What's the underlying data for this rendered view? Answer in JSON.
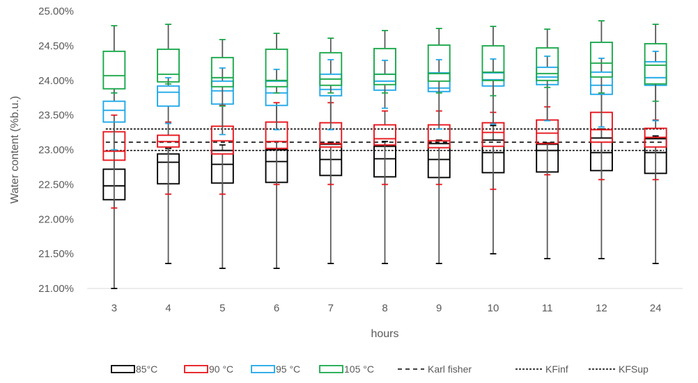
{
  "chart_data": {
    "type": "boxplot",
    "categories": [
      "3",
      "4",
      "5",
      "6",
      "7",
      "8",
      "9",
      "10",
      "11",
      "12",
      "24"
    ],
    "xlabel": "hours",
    "ylabel": "Water content (%b.u.)",
    "ylim": [
      21.0,
      25.0
    ],
    "yticks": [
      21.0,
      21.5,
      22.0,
      22.5,
      23.0,
      23.5,
      24.0,
      24.5,
      25.0
    ],
    "ytick_labels": [
      "21.00%",
      "21.50%",
      "22.00%",
      "22.50%",
      "23.00%",
      "23.50%",
      "24.00%",
      "24.50%",
      "25.00%"
    ],
    "grid": false,
    "legend_position": "bottom",
    "series": [
      {
        "name": "85°C",
        "color": "#000000",
        "boxes": [
          {
            "min": 21.0,
            "q1": 22.28,
            "median": 22.48,
            "q3": 22.72,
            "max": 22.98
          },
          {
            "min": 21.36,
            "q1": 22.51,
            "median": 22.82,
            "q3": 22.94,
            "max": 23.02
          },
          {
            "min": 21.29,
            "q1": 22.52,
            "median": 22.79,
            "q3": 22.99,
            "max": 23.07
          },
          {
            "min": 21.29,
            "q1": 22.53,
            "median": 22.83,
            "q3": 23.0,
            "max": 23.12
          },
          {
            "min": 21.36,
            "q1": 22.63,
            "median": 22.86,
            "q3": 23.08,
            "max": 23.11
          },
          {
            "min": 21.36,
            "q1": 22.61,
            "median": 22.87,
            "q3": 23.05,
            "max": 23.12
          },
          {
            "min": 21.36,
            "q1": 22.6,
            "median": 22.86,
            "q3": 23.09,
            "max": 23.14
          },
          {
            "min": 21.5,
            "q1": 22.67,
            "median": 22.96,
            "q3": 23.14,
            "max": 23.35
          },
          {
            "min": 21.43,
            "q1": 22.68,
            "median": 22.99,
            "q3": 23.08,
            "max": 23.1
          },
          {
            "min": 21.43,
            "q1": 22.7,
            "median": 22.96,
            "q3": 23.17,
            "max": 23.3
          },
          {
            "min": 21.36,
            "q1": 22.66,
            "median": 22.96,
            "q3": 23.16,
            "max": 23.2
          }
        ]
      },
      {
        "name": "90 °C",
        "color": "#e8141a",
        "boxes": [
          {
            "min": 22.16,
            "q1": 22.85,
            "median": 22.98,
            "q3": 23.26,
            "max": 23.5
          },
          {
            "min": 22.36,
            "q1": 23.04,
            "median": 23.12,
            "q3": 23.21,
            "max": 23.4
          },
          {
            "min": 22.36,
            "q1": 22.94,
            "median": 23.13,
            "q3": 23.34,
            "max": 23.64
          },
          {
            "min": 22.5,
            "q1": 23.02,
            "median": 23.12,
            "q3": 23.4,
            "max": 23.68
          },
          {
            "min": 22.5,
            "q1": 23.04,
            "median": 23.09,
            "q3": 23.39,
            "max": 23.68
          },
          {
            "min": 22.5,
            "q1": 23.07,
            "median": 23.16,
            "q3": 23.36,
            "max": 23.56
          },
          {
            "min": 22.5,
            "q1": 23.03,
            "median": 23.13,
            "q3": 23.36,
            "max": 23.56
          },
          {
            "min": 22.43,
            "q1": 23.05,
            "median": 23.25,
            "q3": 23.39,
            "max": 23.54
          },
          {
            "min": 22.64,
            "q1": 23.09,
            "median": 23.24,
            "q3": 23.43,
            "max": 23.62
          },
          {
            "min": 22.57,
            "q1": 23.11,
            "median": 23.29,
            "q3": 23.54,
            "max": 23.8
          },
          {
            "min": 22.57,
            "q1": 23.04,
            "median": 23.18,
            "q3": 23.31,
            "max": 23.43
          }
        ]
      },
      {
        "name": "95 °C",
        "color": "#1ea8e8",
        "boxes": [
          {
            "min": 23.0,
            "q1": 23.4,
            "median": 23.57,
            "q3": 23.7,
            "max": 23.82
          },
          {
            "min": 23.38,
            "q1": 23.63,
            "median": 23.83,
            "q3": 23.92,
            "max": 24.04
          },
          {
            "min": 23.22,
            "q1": 23.66,
            "median": 23.85,
            "q3": 23.99,
            "max": 24.18
          },
          {
            "min": 23.29,
            "q1": 23.64,
            "median": 23.82,
            "q3": 23.99,
            "max": 24.16
          },
          {
            "min": 23.29,
            "q1": 23.78,
            "median": 23.87,
            "q3": 24.09,
            "max": 24.3
          },
          {
            "min": 23.6,
            "q1": 23.86,
            "median": 23.99,
            "q3": 24.09,
            "max": 24.29
          },
          {
            "min": 23.3,
            "q1": 23.84,
            "median": 23.89,
            "q3": 24.11,
            "max": 24.3
          },
          {
            "min": 23.37,
            "q1": 23.92,
            "median": 24.01,
            "q3": 24.11,
            "max": 24.31
          },
          {
            "min": 23.42,
            "q1": 23.94,
            "median": 24.05,
            "q3": 24.19,
            "max": 24.35
          },
          {
            "min": 23.33,
            "q1": 23.8,
            "median": 23.93,
            "q3": 24.12,
            "max": 24.32
          },
          {
            "min": 23.42,
            "q1": 23.93,
            "median": 24.04,
            "q3": 24.27,
            "max": 24.42
          }
        ]
      },
      {
        "name": "105 °C",
        "color": "#1aa84a",
        "boxes": [
          {
            "min": 23.82,
            "q1": 23.88,
            "median": 24.07,
            "q3": 24.42,
            "max": 24.79
          },
          {
            "min": 23.95,
            "q1": 23.98,
            "median": 24.09,
            "q3": 24.45,
            "max": 24.81
          },
          {
            "min": 23.63,
            "q1": 23.91,
            "median": 24.04,
            "q3": 24.33,
            "max": 24.59
          },
          {
            "min": 23.82,
            "q1": 23.91,
            "median": 24.0,
            "q3": 24.45,
            "max": 24.68
          },
          {
            "min": 23.82,
            "q1": 23.93,
            "median": 24.02,
            "q3": 24.4,
            "max": 24.61
          },
          {
            "min": 23.82,
            "q1": 23.94,
            "median": 24.09,
            "q3": 24.46,
            "max": 24.72
          },
          {
            "min": 23.82,
            "q1": 23.99,
            "median": 24.1,
            "q3": 24.51,
            "max": 24.75
          },
          {
            "min": 23.78,
            "q1": 24.0,
            "median": 24.12,
            "q3": 24.5,
            "max": 24.78
          },
          {
            "min": 23.9,
            "q1": 24.0,
            "median": 24.1,
            "q3": 24.47,
            "max": 24.74
          },
          {
            "min": 23.82,
            "q1": 24.05,
            "median": 24.25,
            "q3": 24.55,
            "max": 24.86
          },
          {
            "min": 23.7,
            "q1": 23.95,
            "median": 24.22,
            "q3": 24.53,
            "max": 24.81
          }
        ]
      }
    ],
    "reference_lines": [
      {
        "name": "Karl fisher",
        "value": 23.11,
        "color": "#000000",
        "dash": "6,5"
      },
      {
        "name": "KFinf",
        "value": 22.99,
        "color": "#000000",
        "dash": "3,2"
      },
      {
        "name": "KFSup",
        "value": 23.3,
        "color": "#000000",
        "dash": "3,2"
      }
    ]
  }
}
